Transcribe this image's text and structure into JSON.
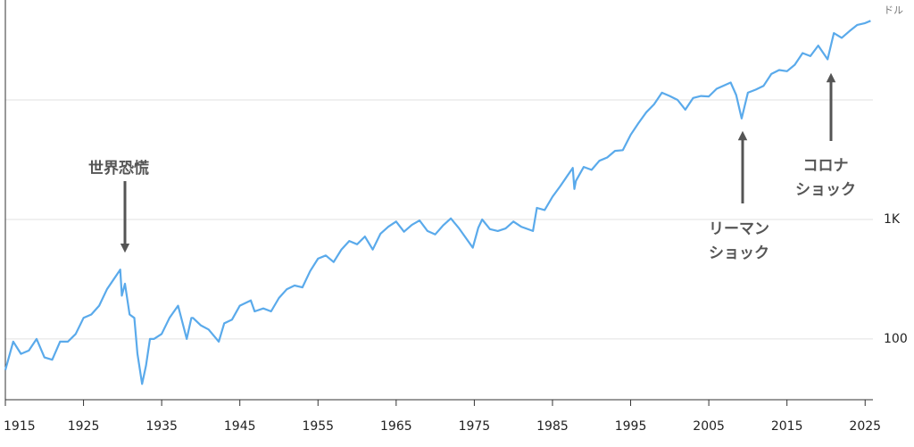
{
  "chart_data": {
    "type": "line",
    "y_unit": "ドル",
    "log_scale": true,
    "grid": true,
    "color": "#5aaaeb",
    "xlim": [
      1915,
      2026
    ],
    "xticks": [
      1915,
      1925,
      1935,
      1945,
      1955,
      1965,
      1975,
      1985,
      1995,
      2005,
      2015,
      2025
    ],
    "ylim": [
      31,
      63000
    ],
    "yticks": [
      100,
      {
        "value": 1000,
        "label": "1K"
      },
      {
        "value": 10000,
        "label": null
      }
    ],
    "x": [
      1915,
      1916,
      1917,
      1918,
      1919,
      1920,
      1921,
      1922,
      1923,
      1924,
      1925,
      1926,
      1927,
      1928,
      1929.7,
      1929.9,
      1930.3,
      1930.9,
      1931.5,
      1931.9,
      1932.5,
      1933,
      1933.5,
      1934,
      1935,
      1936,
      1937.1,
      1938.2,
      1938.8,
      1939,
      1940,
      1941,
      1942.3,
      1943,
      1944,
      1945,
      1946.4,
      1946.9,
      1948,
      1949,
      1950,
      1951,
      1952,
      1953,
      1954,
      1955,
      1956,
      1957,
      1958,
      1959,
      1960,
      1961,
      1962,
      1963,
      1964,
      1965,
      1966,
      1967,
      1968,
      1969,
      1970,
      1971,
      1972,
      1973,
      1974.8,
      1975.5,
      1976,
      1977,
      1978,
      1979,
      1980,
      1981,
      1982.5,
      1983,
      1984,
      1985,
      1986,
      1987.6,
      1987.8,
      1988,
      1989,
      1990,
      1991,
      1992,
      1993,
      1994,
      1995,
      1996,
      1997,
      1998,
      1999,
      2000,
      2001,
      2002,
      2003,
      2004,
      2005,
      2006,
      2007.8,
      2008.5,
      2009.2,
      2010,
      2011,
      2012,
      2013,
      2014,
      2015,
      2016,
      2017,
      2018,
      2019,
      2020.2,
      2021,
      2022,
      2023,
      2024,
      2025,
      2025.7
    ],
    "values": [
      55,
      95,
      75,
      80,
      100,
      70,
      67,
      95,
      95,
      110,
      150,
      160,
      190,
      260,
      380,
      230,
      290,
      160,
      150,
      75,
      42,
      60,
      100,
      100,
      110,
      150,
      190,
      100,
      150,
      150,
      130,
      120,
      95,
      135,
      145,
      190,
      210,
      170,
      180,
      170,
      220,
      260,
      280,
      270,
      370,
      470,
      500,
      440,
      560,
      660,
      620,
      720,
      560,
      760,
      870,
      960,
      790,
      900,
      980,
      800,
      750,
      890,
      1020,
      850,
      580,
      850,
      1000,
      830,
      800,
      840,
      960,
      870,
      800,
      1250,
      1200,
      1550,
      1900,
      2700,
      1800,
      2100,
      2750,
      2600,
      3100,
      3300,
      3750,
      3800,
      5100,
      6400,
      7900,
      9200,
      11500,
      10800,
      10000,
      8300,
      10400,
      10800,
      10700,
      12400,
      14000,
      11000,
      7000,
      11500,
      12200,
      13100,
      16500,
      17800,
      17400,
      19700,
      24700,
      23300,
      28500,
      21900,
      36300,
      33100,
      37700,
      42500,
      44000,
      46000
    ],
    "annotations": [
      {
        "lines": [
          "世界恐慌"
        ]
      },
      {
        "lines": [
          "リーマン",
          "ショック"
        ]
      },
      {
        "lines": [
          "コロナ",
          "ショック"
        ]
      }
    ]
  }
}
